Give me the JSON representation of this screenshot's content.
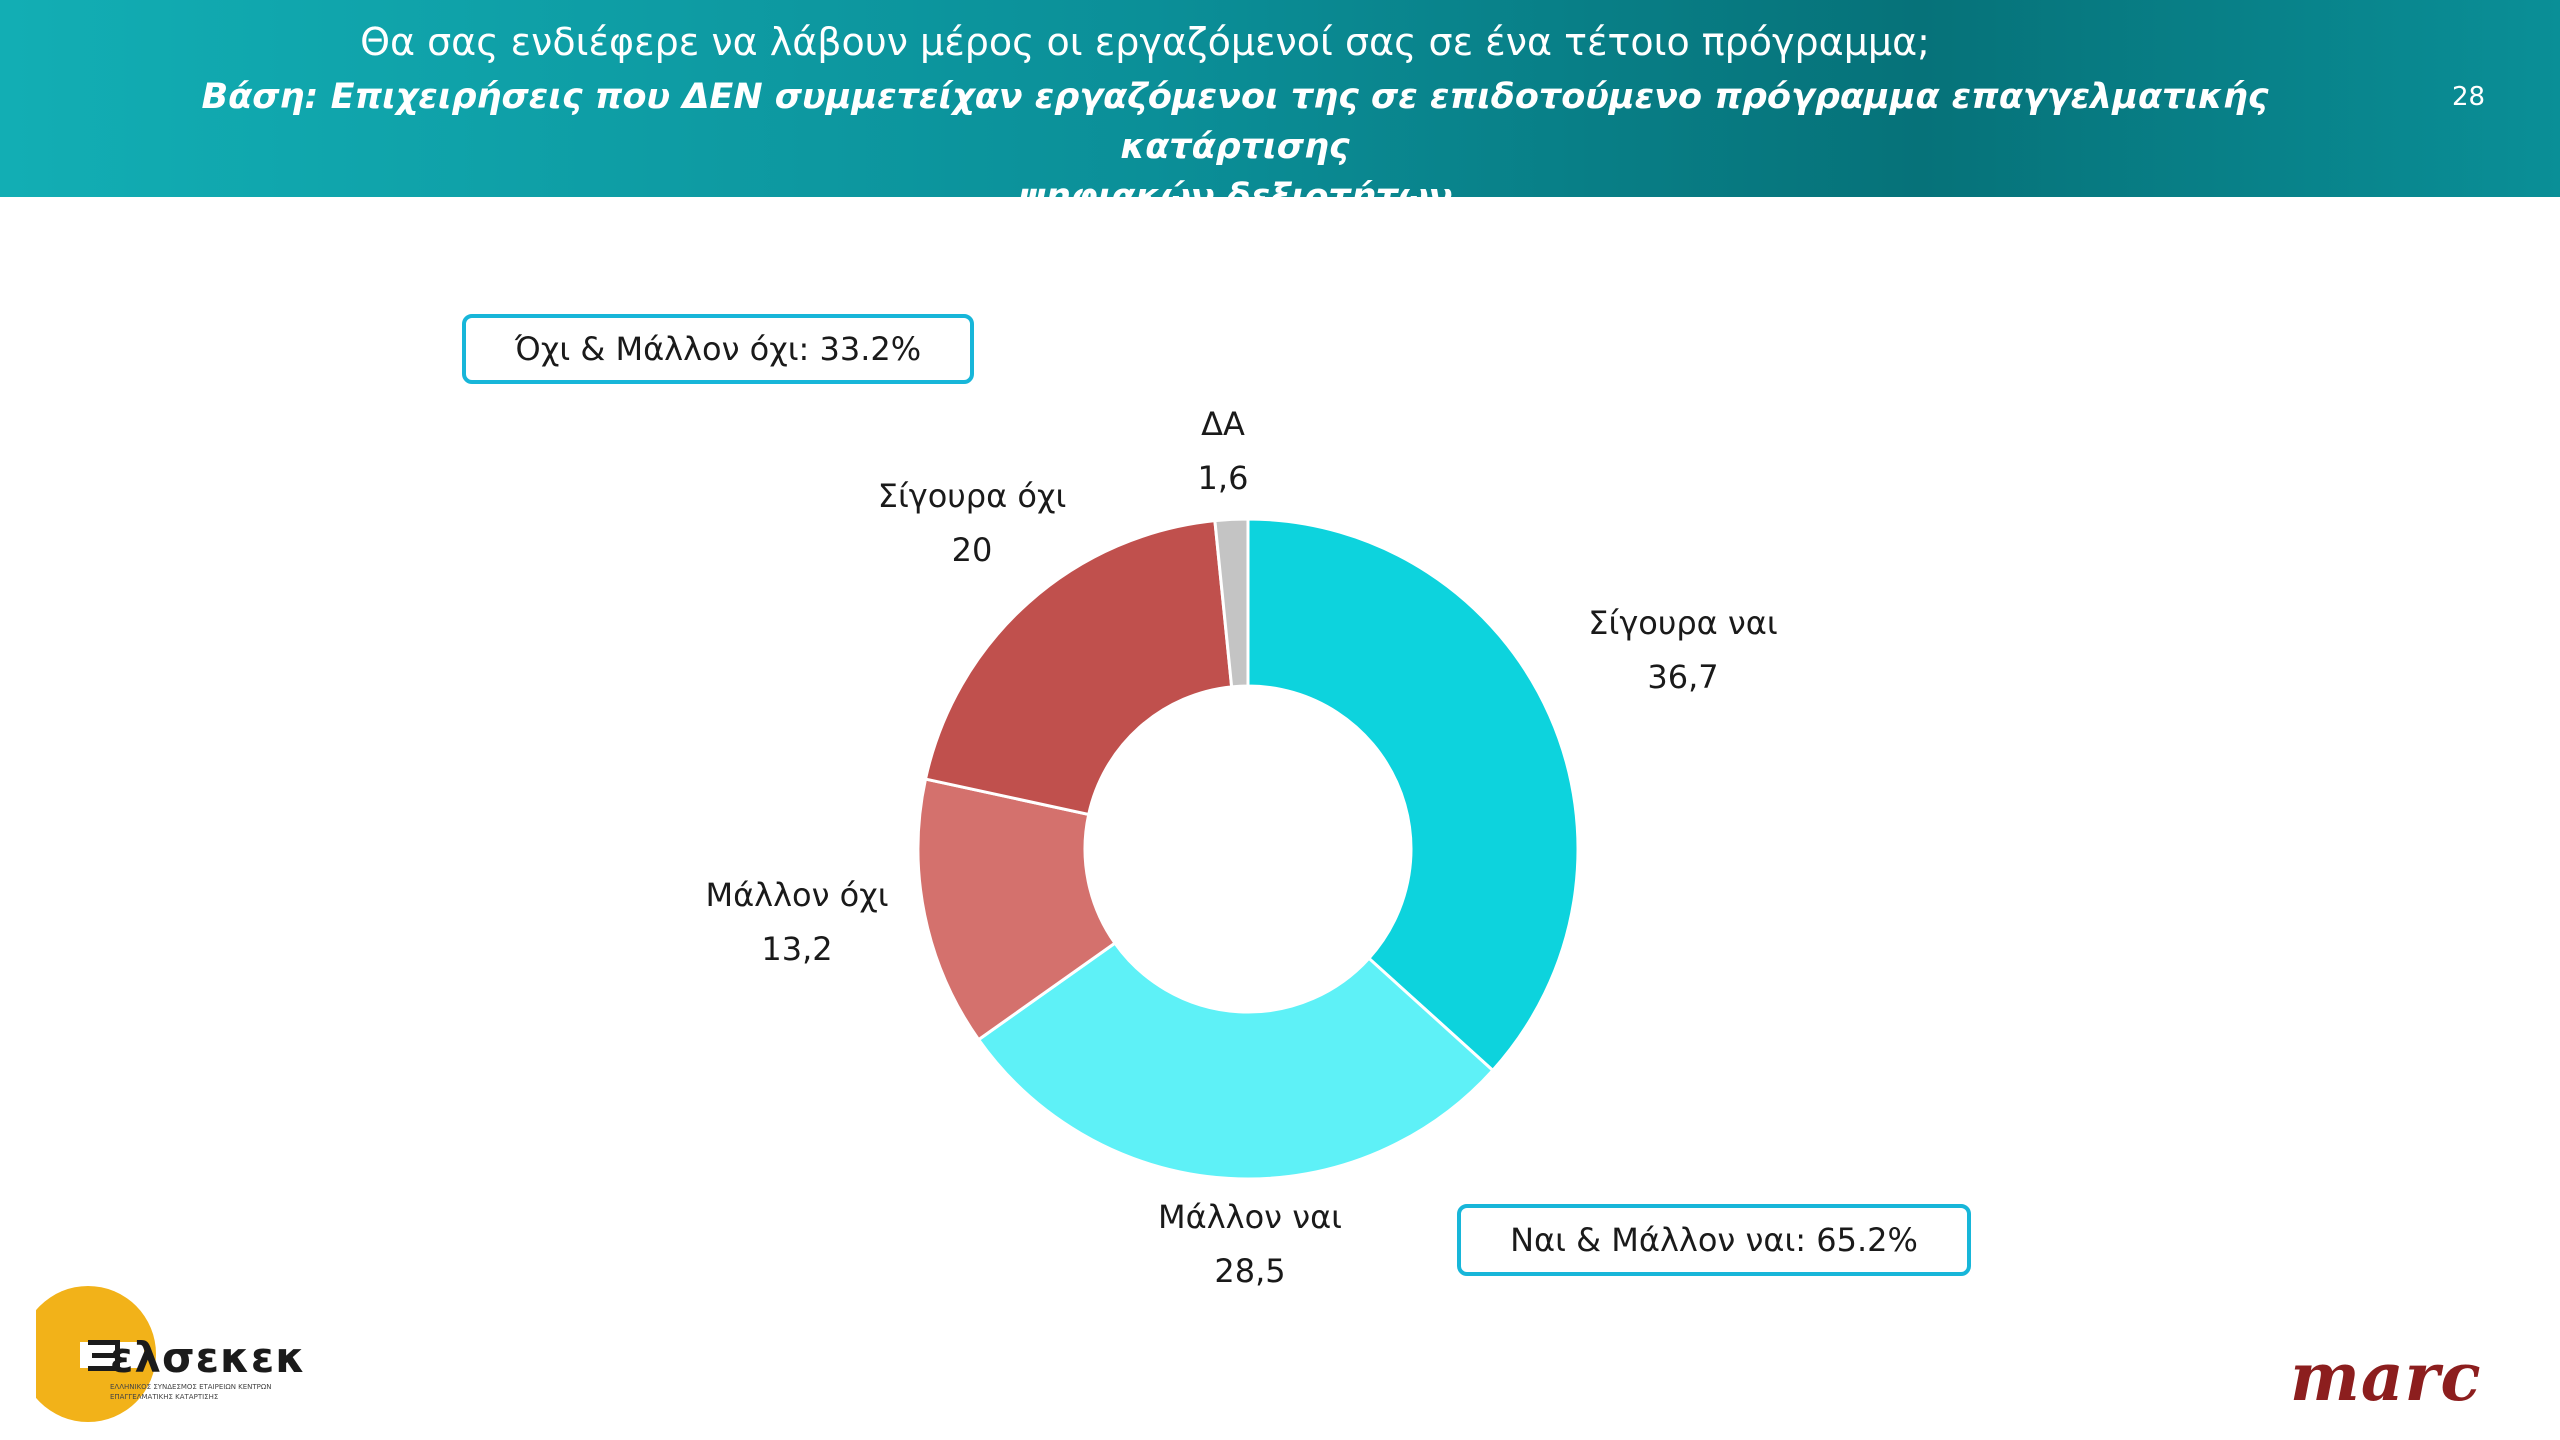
{
  "header": {
    "title": "Θα σας ενδιέφερε να λάβουν μέρος οι εργαζόμενοί σας σε ένα τέτοιο πρόγραμμα;",
    "subtitle_line1": "Βάση: Επιχειρήσεις που ΔΕΝ συμμετείχαν εργαζόμενοι της σε επιδοτούμενο πρόγραμμα επαγγελματικής κατάρτισης",
    "subtitle_line2": "ψηφιακών δεξιοτήτων",
    "page_number": "28"
  },
  "callouts": {
    "no_total": "Όχι & Μάλλον όχι: 33.2%",
    "yes_total": "Ναι & Μάλλον ναι: 65.2%"
  },
  "chart_data": {
    "type": "pie",
    "donut": true,
    "slices": [
      {
        "label": "Σίγουρα ναι",
        "value": 36.7,
        "display": "36,7",
        "color": "#0dd3dd"
      },
      {
        "label": "Μάλλον ναι",
        "value": 28.5,
        "display": "28,5",
        "color": "#5ef1f7"
      },
      {
        "label": "Μάλλον όχι",
        "value": 13.2,
        "display": "13,2",
        "color": "#d4716d"
      },
      {
        "label": "Σίγουρα όχι",
        "value": 20.0,
        "display": "20",
        "color": "#c0504d"
      },
      {
        "label": "ΔΑ",
        "value": 1.6,
        "display": "1,6",
        "color": "#c4c4c4"
      }
    ]
  },
  "logos": {
    "left_name": "ελσεκεκ",
    "left_tagline": "ΕΛΛΗΝΙΚΟΣ ΣΥΝΔΕΣΜΟΣ ΕΤΑΙΡΕΙΩΝ ΚΕΝΤΡΩΝ ΕΠΑΓΓΕΛΜΑΤΙΚΗΣ ΚΑΤΑΡΤΙΣΗΣ",
    "right_name": "marc"
  }
}
